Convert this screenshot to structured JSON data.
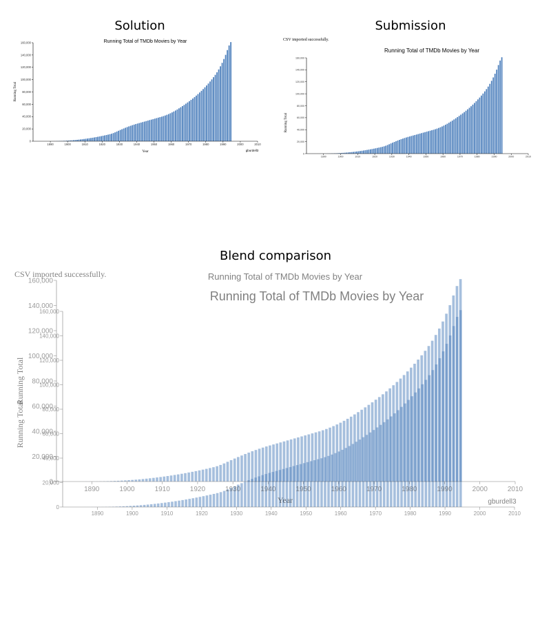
{
  "headings": {
    "solution": "Solution",
    "submission": "Submission",
    "blend": "Blend comparison"
  },
  "status_text": "CSV imported successfully.",
  "colors": {
    "bar": "#4f81bd",
    "bar_light": "#9ebfdf",
    "axis": "#000000",
    "faded_text": "#888888"
  },
  "chart_data": [
    {
      "id": "solution",
      "type": "bar",
      "title": "Running Total of TMDb Movies by Year",
      "xlabel": "Year",
      "ylabel": "Running Total",
      "credit": "gburdell3",
      "xlim": [
        1880,
        2010
      ],
      "ylim": [
        0,
        160000
      ],
      "x_ticks": [
        1890,
        1900,
        1910,
        1920,
        1930,
        1940,
        1950,
        1960,
        1970,
        1980,
        1990,
        2000,
        2010
      ],
      "y_ticks": [
        0,
        20000,
        40000,
        60000,
        80000,
        100000,
        120000,
        140000,
        160000
      ],
      "y_tick_labels": [
        "0",
        "20,000",
        "40,000",
        "60,000",
        "80,000",
        "100,000",
        "120,000",
        "140,000",
        "160,000"
      ],
      "grid": false,
      "year_start": 1881,
      "values": [
        2,
        4,
        6,
        9,
        12,
        16,
        21,
        28,
        36,
        46,
        60,
        90,
        140,
        210,
        290,
        380,
        480,
        600,
        740,
        900,
        1080,
        1280,
        1500,
        1740,
        2000,
        2280,
        2580,
        2900,
        3240,
        3600,
        3980,
        4380,
        4800,
        5240,
        5700,
        6180,
        6680,
        7200,
        7740,
        8300,
        8880,
        9480,
        10100,
        10740,
        11400,
        12200,
        13200,
        14400,
        15700,
        17000,
        18300,
        19500,
        20700,
        21900,
        23000,
        24100,
        25100,
        26100,
        27000,
        27900,
        28700,
        29500,
        30300,
        31100,
        31900,
        32700,
        33500,
        34300,
        35100,
        35900,
        36700,
        37500,
        38300,
        39100,
        39900,
        40800,
        41800,
        42900,
        44100,
        45400,
        46800,
        48300,
        49900,
        51600,
        53400,
        55200,
        57100,
        59000,
        61000,
        63000,
        65100,
        67200,
        69400,
        71700,
        74100,
        76600,
        79200,
        81900,
        84700,
        87600,
        90600,
        93700,
        97000,
        100400,
        104000,
        107800,
        112000,
        116600,
        121700,
        127300,
        133500,
        140300,
        148000,
        155500,
        161000
      ]
    },
    {
      "id": "submission",
      "type": "bar",
      "title": "Running Total of TMDb Movies by Year",
      "xlabel": "",
      "ylabel": "Running Total",
      "xlim": [
        1880,
        2010
      ],
      "ylim": [
        0,
        160000
      ],
      "x_ticks": [
        1890,
        1900,
        1910,
        1920,
        1930,
        1940,
        1950,
        1960,
        1970,
        1980,
        1990,
        2000,
        2010
      ],
      "y_ticks": [
        0,
        20000,
        40000,
        60000,
        80000,
        100000,
        120000,
        140000,
        160000
      ],
      "y_tick_labels": [
        "0",
        "20,000",
        "40,000",
        "60,000",
        "80,000",
        "100,000",
        "120,000",
        "140,000",
        "160,000"
      ],
      "grid": false,
      "year_start": 1881,
      "same_values_as": "solution"
    }
  ],
  "blend": {
    "solution_title": "Running Total of TMDb Movies by Year",
    "submission_title": "Running Total of TMDb Movies by Year",
    "status_text": "CSV imported successfully.",
    "xlabel": "Year",
    "ylabel": "Running Total",
    "credit": "gburdell3"
  }
}
